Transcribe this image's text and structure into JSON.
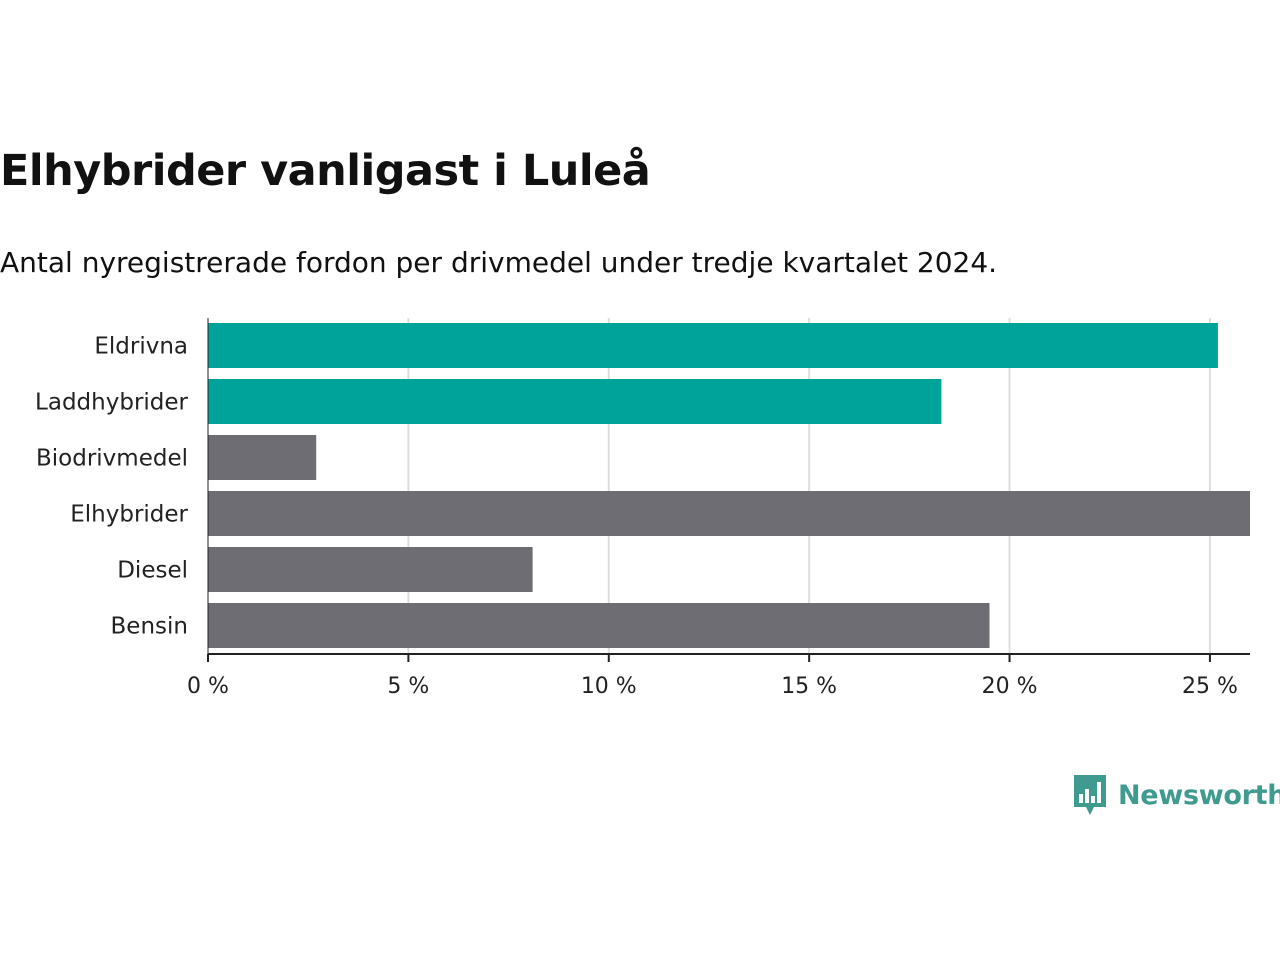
{
  "chart_data": {
    "type": "bar",
    "orientation": "horizontal",
    "title": "Elhybrider vanligast i Luleå",
    "subtitle": "Antal nyregistrerade fordon per drivmedel under tredje kvartalet 2024.",
    "categories": [
      "Eldrivna",
      "Laddhybrider",
      "Biodrivmedel",
      "Elhybrider",
      "Diesel",
      "Bensin"
    ],
    "values": [
      25.2,
      18.3,
      2.7,
      26.0,
      8.1,
      19.5
    ],
    "highlighted": [
      true,
      true,
      false,
      false,
      false,
      false
    ],
    "unit": "%",
    "xlim": [
      0,
      26
    ],
    "xticks": [
      0,
      5,
      10,
      15,
      20,
      25
    ],
    "xtick_labels": [
      "0 %",
      "5 %",
      "10 %",
      "15 %",
      "20 %",
      "25 %"
    ],
    "grid": true,
    "xlabel": "",
    "ylabel": ""
  },
  "colors": {
    "highlight": "#00a39a",
    "default": "#6e6d73",
    "grid": "#dddddd",
    "axis": "#222222",
    "brand": "#3f9a90"
  },
  "branding": {
    "logo_text": "Newsworthy",
    "logo_icon": "bar-chart-speech-bubble-icon"
  }
}
